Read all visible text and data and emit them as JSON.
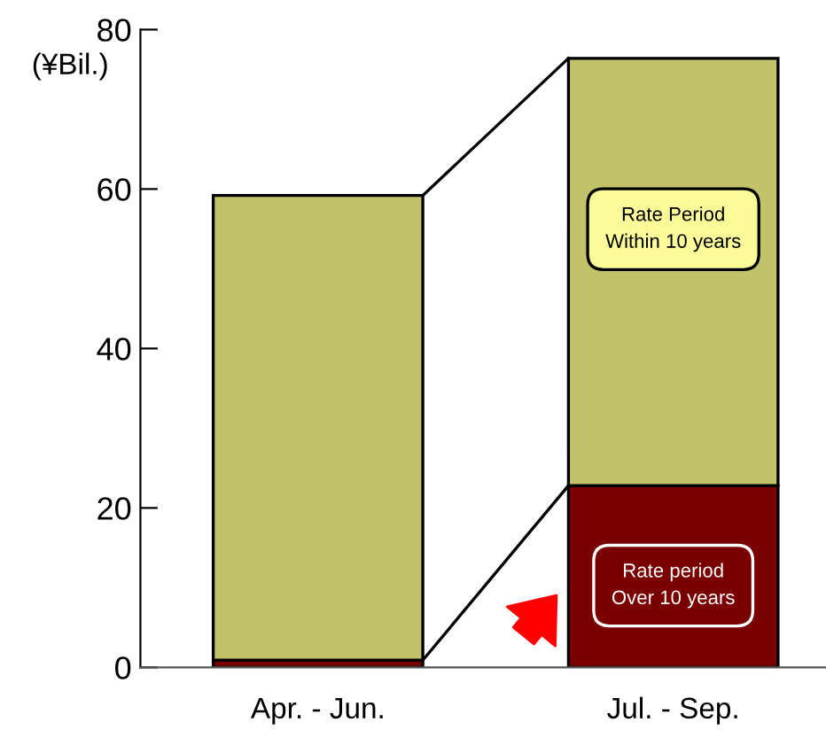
{
  "chart_data": {
    "type": "bar",
    "stacked": true,
    "ylabel": "(¥Bil.)",
    "categories": [
      "Apr. - Jun.",
      "Jul. - Sep."
    ],
    "series": [
      {
        "name": "Rate period\nOver 10 years",
        "color": "#7a0000",
        "values": [
          0.9,
          22.8
        ]
      },
      {
        "name": "Rate Period\nWithin 10 years",
        "color": "#c2c26a",
        "values": [
          58.3,
          53.6
        ]
      }
    ],
    "ylim": [
      0,
      80
    ],
    "yticks": [
      0,
      20,
      40,
      60,
      80
    ],
    "grid": false,
    "legend": false
  }
}
